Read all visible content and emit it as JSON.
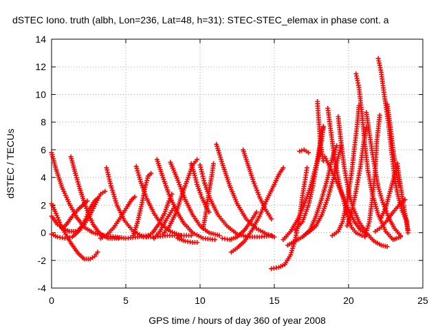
{
  "chart_data": {
    "type": "scatter",
    "title": "dSTEC Iono. truth (albh, Lon=236, Lat=48, h=31): STEC-STEC_elemax in phase cont. a",
    "xlabel": "GPS time / hours of day 360 of year 2008",
    "ylabel": "dSTEC  / TECUs",
    "xlim": [
      0,
      25
    ],
    "ylim": [
      -4,
      14
    ],
    "xticks": [
      "0",
      "5",
      "10",
      "15",
      "20",
      "25"
    ],
    "yticks": [
      "-4",
      "-2",
      "0",
      "2",
      "4",
      "6",
      "8",
      "10",
      "12",
      "14"
    ],
    "grid": true,
    "marker": "+",
    "color": "#ff0000",
    "series_tracks": [
      [
        [
          0.0,
          5.8
        ],
        [
          0.3,
          4.6
        ],
        [
          0.7,
          3.3
        ],
        [
          1.2,
          2.1
        ],
        [
          1.7,
          1.1
        ],
        [
          2.2,
          0.4
        ],
        [
          2.8,
          0.0
        ],
        [
          3.5,
          -0.2
        ],
        [
          4.3,
          -0.3
        ],
        [
          5.0,
          -0.4
        ],
        [
          5.8,
          -0.3
        ],
        [
          6.5,
          -0.2
        ]
      ],
      [
        [
          0.0,
          2.1
        ],
        [
          0.3,
          1.4
        ],
        [
          0.6,
          0.6
        ],
        [
          0.8,
          0.2
        ],
        [
          1.1,
          -0.4
        ],
        [
          1.4,
          -0.9
        ],
        [
          1.8,
          -1.5
        ],
        [
          2.2,
          -1.9
        ],
        [
          2.6,
          -1.9
        ],
        [
          2.9,
          -1.7
        ],
        [
          3.1,
          -1.4
        ]
      ],
      [
        [
          0.0,
          1.2
        ],
        [
          0.4,
          0.6
        ],
        [
          0.8,
          0.3
        ],
        [
          1.2,
          0.1
        ],
        [
          1.6,
          0.1
        ]
      ],
      [
        [
          0.0,
          -0.1
        ],
        [
          0.4,
          -0.3
        ],
        [
          0.9,
          -0.4
        ],
        [
          1.4,
          -0.3
        ],
        [
          1.9,
          0.2
        ],
        [
          2.3,
          1.0
        ],
        [
          2.6,
          1.8
        ],
        [
          2.9,
          2.3
        ],
        [
          3.1,
          2.5
        ]
      ],
      [
        [
          0.7,
          0.3
        ],
        [
          1.0,
          0.6
        ],
        [
          1.4,
          1.2
        ],
        [
          1.8,
          1.7
        ],
        [
          2.2,
          2.1
        ],
        [
          2.4,
          2.3
        ]
      ],
      [
        [
          1.3,
          5.5
        ],
        [
          1.6,
          4.3
        ],
        [
          1.9,
          3.2
        ],
        [
          2.2,
          2.2
        ],
        [
          2.5,
          1.3
        ],
        [
          2.8,
          0.6
        ],
        [
          3.2,
          0.0
        ],
        [
          3.8,
          -0.4
        ],
        [
          4.5,
          -0.4
        ]
      ],
      [
        [
          1.8,
          0.2
        ],
        [
          2.2,
          0.6
        ],
        [
          2.6,
          1.3
        ],
        [
          3.0,
          2.2
        ],
        [
          3.3,
          2.8
        ],
        [
          3.6,
          3.0
        ]
      ],
      [
        [
          3.7,
          4.7
        ],
        [
          4.0,
          3.4
        ],
        [
          4.4,
          2.0
        ],
        [
          4.9,
          0.9
        ],
        [
          5.5,
          0.1
        ],
        [
          6.2,
          -0.3
        ],
        [
          7.0,
          -0.3
        ],
        [
          7.8,
          -0.2
        ],
        [
          8.6,
          -0.2
        ],
        [
          9.4,
          -0.2
        ]
      ],
      [
        [
          3.3,
          -0.4
        ],
        [
          3.7,
          -0.2
        ],
        [
          4.2,
          0.4
        ],
        [
          4.7,
          1.2
        ],
        [
          5.1,
          1.9
        ],
        [
          5.4,
          2.4
        ],
        [
          5.6,
          2.6
        ]
      ],
      [
        [
          5.5,
          -0.2
        ],
        [
          5.8,
          0.8
        ],
        [
          6.1,
          2.2
        ],
        [
          6.3,
          3.3
        ],
        [
          6.5,
          4.1
        ],
        [
          6.7,
          4.3
        ]
      ],
      [
        [
          5.7,
          4.8
        ],
        [
          6.0,
          3.7
        ],
        [
          6.4,
          2.5
        ],
        [
          6.9,
          1.4
        ],
        [
          7.4,
          0.6
        ],
        [
          8.0,
          0.1
        ],
        [
          8.7,
          -0.2
        ]
      ],
      [
        [
          6.4,
          -0.3
        ],
        [
          6.8,
          0.0
        ],
        [
          7.2,
          0.6
        ],
        [
          7.6,
          1.4
        ],
        [
          7.9,
          2.3
        ],
        [
          8.1,
          2.8
        ]
      ],
      [
        [
          7.1,
          5.3
        ],
        [
          7.5,
          4.0
        ],
        [
          7.9,
          2.8
        ],
        [
          8.4,
          1.6
        ],
        [
          8.9,
          0.7
        ],
        [
          9.5,
          0.0
        ],
        [
          10.2,
          -0.4
        ],
        [
          11.0,
          -0.5
        ]
      ],
      [
        [
          8.0,
          5.1
        ],
        [
          8.5,
          3.8
        ],
        [
          9.0,
          2.4
        ],
        [
          9.5,
          1.3
        ],
        [
          10.0,
          0.5
        ],
        [
          10.6,
          0.0
        ],
        [
          11.3,
          -0.2
        ]
      ],
      [
        [
          7.5,
          -0.1
        ],
        [
          7.9,
          0.4
        ],
        [
          8.4,
          1.5
        ],
        [
          8.8,
          2.8
        ],
        [
          9.2,
          4.0
        ],
        [
          9.5,
          4.9
        ],
        [
          9.8,
          5.3
        ]
      ],
      [
        [
          6.9,
          -0.4
        ],
        [
          7.3,
          0.1
        ],
        [
          7.7,
          0.9
        ],
        [
          8.1,
          1.6
        ],
        [
          8.3,
          1.9
        ]
      ],
      [
        [
          9.4,
          5.0
        ],
        [
          9.6,
          4.3
        ],
        [
          9.8,
          3.5
        ],
        [
          10.1,
          2.6
        ],
        [
          10.4,
          1.9
        ],
        [
          10.6,
          1.5
        ]
      ],
      [
        [
          8.5,
          -0.4
        ],
        [
          9.0,
          -0.6
        ],
        [
          9.5,
          -0.7
        ],
        [
          9.8,
          -0.7
        ]
      ],
      [
        [
          10.0,
          4.9
        ],
        [
          10.3,
          3.6
        ],
        [
          10.7,
          2.4
        ],
        [
          11.2,
          1.3
        ],
        [
          11.8,
          0.5
        ],
        [
          12.5,
          -0.1
        ],
        [
          13.2,
          -0.3
        ],
        [
          14.0,
          -0.3
        ],
        [
          14.8,
          -0.2
        ]
      ],
      [
        [
          10.2,
          0.3
        ],
        [
          10.4,
          1.5
        ],
        [
          10.6,
          3.0
        ],
        [
          10.8,
          4.2
        ],
        [
          10.9,
          5.0
        ]
      ],
      [
        [
          11.1,
          6.4
        ],
        [
          11.5,
          5.0
        ],
        [
          12.0,
          3.4
        ],
        [
          12.5,
          2.1
        ],
        [
          13.1,
          1.0
        ],
        [
          13.8,
          0.3
        ],
        [
          14.5,
          -0.1
        ],
        [
          15.0,
          -0.3
        ]
      ],
      [
        [
          11.5,
          -0.4
        ],
        [
          12.0,
          -0.5
        ],
        [
          12.5,
          -0.3
        ],
        [
          13.0,
          0.2
        ],
        [
          13.4,
          0.8
        ],
        [
          13.8,
          1.5
        ]
      ],
      [
        [
          12.1,
          -1.4
        ],
        [
          12.5,
          -1.1
        ],
        [
          13.0,
          -0.6
        ],
        [
          13.5,
          0.2
        ],
        [
          14.0,
          1.2
        ],
        [
          14.5,
          2.4
        ],
        [
          15.0,
          3.5
        ],
        [
          15.3,
          4.2
        ],
        [
          15.6,
          4.7
        ]
      ],
      [
        [
          12.9,
          6.0
        ],
        [
          13.2,
          5.0
        ],
        [
          13.6,
          3.7
        ],
        [
          14.0,
          2.6
        ],
        [
          14.4,
          1.7
        ],
        [
          14.8,
          1.0
        ]
      ],
      [
        [
          14.8,
          -2.6
        ],
        [
          15.3,
          -2.5
        ],
        [
          15.7,
          -2.3
        ],
        [
          16.1,
          -1.6
        ],
        [
          16.4,
          -0.5
        ],
        [
          16.7,
          1.1
        ],
        [
          16.9,
          2.7
        ],
        [
          17.1,
          4.0
        ],
        [
          17.2,
          4.7
        ]
      ],
      [
        [
          15.6,
          -0.5
        ],
        [
          16.1,
          0.1
        ],
        [
          16.6,
          1.0
        ],
        [
          17.0,
          2.0
        ],
        [
          17.4,
          3.2
        ],
        [
          17.7,
          4.4
        ],
        [
          18.0,
          5.6
        ],
        [
          18.2,
          6.8
        ],
        [
          18.3,
          7.7
        ]
      ],
      [
        [
          15.9,
          -0.9
        ],
        [
          16.4,
          -0.6
        ],
        [
          16.9,
          -0.3
        ],
        [
          17.4,
          0.2
        ],
        [
          17.8,
          1.2
        ],
        [
          18.2,
          2.5
        ],
        [
          18.6,
          4.0
        ],
        [
          18.9,
          5.4
        ],
        [
          19.2,
          6.3
        ]
      ],
      [
        [
          16.4,
          0.2
        ],
        [
          16.9,
          0.8
        ],
        [
          17.3,
          2.0
        ],
        [
          17.6,
          3.4
        ],
        [
          17.9,
          5.2
        ],
        [
          18.1,
          6.6
        ],
        [
          18.3,
          7.6
        ]
      ],
      [
        [
          16.7,
          5.9
        ],
        [
          17.0,
          6.0
        ],
        [
          17.3,
          5.8
        ]
      ],
      [
        [
          17.0,
          -0.2
        ],
        [
          17.4,
          0.1
        ],
        [
          17.8,
          0.5
        ],
        [
          18.2,
          1.3
        ],
        [
          18.6,
          2.5
        ],
        [
          19.0,
          4.0
        ],
        [
          19.3,
          5.5
        ],
        [
          19.5,
          6.3
        ]
      ],
      [
        [
          17.9,
          9.5
        ],
        [
          18.0,
          8.0
        ],
        [
          18.1,
          6.5
        ],
        [
          18.3,
          5.2
        ]
      ],
      [
        [
          18.6,
          9.0
        ],
        [
          18.8,
          7.4
        ],
        [
          19.0,
          5.8
        ],
        [
          19.2,
          4.5
        ],
        [
          19.4,
          3.4
        ],
        [
          19.6,
          2.6
        ],
        [
          19.8,
          1.8
        ],
        [
          20.0,
          1.0
        ],
        [
          20.2,
          0.4
        ],
        [
          20.5,
          0.0
        ],
        [
          20.9,
          -0.2
        ]
      ],
      [
        [
          18.9,
          -0.2
        ],
        [
          19.3,
          0.1
        ],
        [
          19.6,
          0.8
        ],
        [
          19.9,
          2.3
        ],
        [
          20.2,
          4.3
        ],
        [
          20.4,
          6.2
        ],
        [
          20.6,
          8.0
        ],
        [
          20.7,
          9.2
        ]
      ],
      [
        [
          18.4,
          5.5
        ],
        [
          18.8,
          4.6
        ],
        [
          19.2,
          3.7
        ],
        [
          19.6,
          2.7
        ],
        [
          20.0,
          1.7
        ],
        [
          20.4,
          0.8
        ],
        [
          20.8,
          0.2
        ],
        [
          21.2,
          -0.1
        ]
      ],
      [
        [
          20.5,
          11.5
        ],
        [
          20.7,
          10.5
        ],
        [
          20.9,
          8.6
        ],
        [
          21.1,
          6.4
        ],
        [
          21.3,
          4.5
        ],
        [
          21.6,
          2.8
        ],
        [
          22.0,
          1.3
        ],
        [
          22.5,
          0.1
        ],
        [
          23.0,
          -0.5
        ],
        [
          23.5,
          -0.3
        ]
      ],
      [
        [
          19.3,
          8.4
        ],
        [
          19.5,
          6.5
        ],
        [
          19.7,
          4.8
        ],
        [
          20.0,
          3.0
        ],
        [
          20.3,
          1.8
        ],
        [
          20.7,
          0.8
        ],
        [
          21.2,
          0.0
        ],
        [
          21.7,
          -0.6
        ],
        [
          22.2,
          -0.9
        ],
        [
          22.6,
          -1.0
        ]
      ],
      [
        [
          19.9,
          0.5
        ],
        [
          20.2,
          1.5
        ],
        [
          20.5,
          3.0
        ],
        [
          20.8,
          4.8
        ],
        [
          21.0,
          6.4
        ],
        [
          21.2,
          7.6
        ]
      ],
      [
        [
          21.1,
          -0.3
        ],
        [
          21.4,
          0.8
        ],
        [
          21.6,
          2.5
        ],
        [
          21.8,
          4.5
        ],
        [
          21.9,
          6.6
        ],
        [
          22.1,
          8.5
        ]
      ],
      [
        [
          21.2,
          8.7
        ],
        [
          21.4,
          7.2
        ],
        [
          21.6,
          5.8
        ],
        [
          21.8,
          4.5
        ],
        [
          22.0,
          3.3
        ],
        [
          22.3,
          2.2
        ],
        [
          22.7,
          1.1
        ],
        [
          23.1,
          0.3
        ],
        [
          23.5,
          -0.2
        ]
      ],
      [
        [
          22.0,
          12.6
        ],
        [
          22.2,
          11.6
        ],
        [
          22.4,
          10.0
        ],
        [
          22.7,
          7.8
        ],
        [
          22.9,
          5.8
        ],
        [
          23.1,
          4.0
        ],
        [
          23.3,
          2.8
        ],
        [
          23.6,
          1.6
        ],
        [
          23.9,
          0.9
        ],
        [
          24.0,
          0.0
        ]
      ],
      [
        [
          22.2,
          1.1
        ],
        [
          22.5,
          1.8
        ],
        [
          22.8,
          3.0
        ],
        [
          23.1,
          4.2
        ],
        [
          23.3,
          5.0
        ]
      ],
      [
        [
          23.3,
          4.8
        ],
        [
          23.5,
          3.4
        ],
        [
          23.7,
          2.0
        ],
        [
          23.9,
          0.8
        ],
        [
          24.0,
          0.2
        ]
      ],
      [
        [
          21.8,
          0.1
        ],
        [
          22.2,
          0.4
        ],
        [
          22.6,
          0.9
        ],
        [
          23.0,
          1.5
        ],
        [
          23.4,
          2.0
        ],
        [
          23.8,
          2.4
        ]
      ],
      [
        [
          22.6,
          9.3
        ],
        [
          22.8,
          7.8
        ],
        [
          23.0,
          6.0
        ],
        [
          23.2,
          4.5
        ],
        [
          23.4,
          3.4
        ]
      ]
    ]
  }
}
